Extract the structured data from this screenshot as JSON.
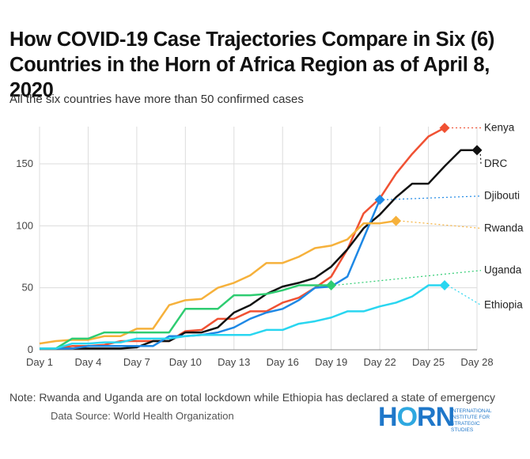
{
  "title": "How COVID-19 Case Trajectories Compare in Six (6) Countries in the Horn of Africa Region as of April 8, 2020",
  "subtitle": "All the six countries have more than 50 confirmed cases",
  "note": "Note: Rwanda and Uganda are on total lockdown while Ethiopia has declared a state of emergency",
  "source": "Data Source: World Health Organization",
  "logo": {
    "word": "HORN",
    "subtitle_lines": [
      "INTERNATIONAL",
      "INSTITUTE FOR",
      "STRATEGIC",
      "STUDIES"
    ]
  },
  "chart_data": {
    "type": "line",
    "title": "How COVID-19 Case Trajectories Compare in Six (6) Countries in the Horn of Africa Region as of April 8, 2020",
    "subtitle": "All the six countries have more than 50 confirmed cases",
    "xlabel": "",
    "ylabel": "",
    "x_ticks": [
      1,
      4,
      7,
      10,
      13,
      16,
      19,
      22,
      25,
      28
    ],
    "x_tick_labels": [
      "Day 1",
      "Day 4",
      "Day 7",
      "Day 10",
      "Day 13",
      "Day 16",
      "Day 19",
      "Day 22",
      "Day 25",
      "Day 28"
    ],
    "y_ticks": [
      0,
      50,
      100,
      150
    ],
    "xlim": [
      1,
      28
    ],
    "ylim": [
      0,
      180
    ],
    "grid": "vertical and horizontal",
    "legend": "direct labels at line ends (right)",
    "series": [
      {
        "name": "Kenya",
        "color": "#f05133",
        "x": [
          1,
          2,
          3,
          4,
          5,
          6,
          7,
          8,
          9,
          10,
          11,
          12,
          13,
          14,
          15,
          16,
          17,
          18,
          19,
          20,
          21,
          22,
          23,
          24,
          25,
          26
        ],
        "y": [
          1,
          1,
          3,
          3,
          4,
          7,
          7,
          7,
          7,
          15,
          16,
          25,
          25,
          31,
          31,
          38,
          42,
          50,
          59,
          81,
          110,
          122,
          142,
          158,
          172,
          179
        ]
      },
      {
        "name": "DRC",
        "color": "#111111",
        "x": [
          1,
          2,
          3,
          4,
          5,
          6,
          7,
          8,
          9,
          10,
          11,
          12,
          13,
          14,
          15,
          16,
          17,
          18,
          19,
          20,
          21,
          22,
          23,
          24,
          25,
          26,
          27,
          28
        ],
        "y": [
          1,
          1,
          1,
          1,
          1,
          1,
          2,
          7,
          7,
          14,
          14,
          18,
          30,
          36,
          45,
          51,
          54,
          58,
          67,
          81,
          98,
          109,
          123,
          134,
          134,
          148,
          161,
          161
        ]
      },
      {
        "name": "Djibouti",
        "color": "#1e88e5",
        "x": [
          1,
          2,
          3,
          4,
          5,
          6,
          7,
          8,
          9,
          10,
          11,
          12,
          13,
          14,
          15,
          16,
          17,
          18,
          19,
          20,
          21,
          22
        ],
        "y": [
          1,
          1,
          1,
          3,
          3,
          3,
          3,
          3,
          11,
          11,
          12,
          14,
          18,
          25,
          30,
          33,
          40,
          50,
          51,
          59,
          90,
          121
        ]
      },
      {
        "name": "Rwanda",
        "color": "#f6b13b",
        "x": [
          1,
          2,
          3,
          4,
          5,
          6,
          7,
          8,
          9,
          10,
          11,
          12,
          13,
          14,
          15,
          16,
          17,
          18,
          19,
          20,
          21,
          22,
          23
        ],
        "y": [
          5,
          7,
          8,
          8,
          11,
          11,
          17,
          17,
          36,
          40,
          41,
          50,
          54,
          60,
          70,
          70,
          75,
          82,
          84,
          89,
          102,
          102,
          104
        ]
      },
      {
        "name": "Uganda",
        "color": "#2ecc71",
        "x": [
          1,
          2,
          3,
          4,
          5,
          6,
          7,
          8,
          9,
          10,
          11,
          12,
          13,
          14,
          15,
          16,
          17,
          18,
          19
        ],
        "y": [
          1,
          1,
          9,
          9,
          14,
          14,
          14,
          14,
          14,
          33,
          33,
          33,
          44,
          44,
          45,
          48,
          52,
          52,
          52
        ]
      },
      {
        "name": "Ethiopia",
        "color": "#29d6f0",
        "x": [
          1,
          2,
          3,
          4,
          5,
          6,
          7,
          8,
          9,
          10,
          11,
          12,
          13,
          14,
          15,
          16,
          17,
          18,
          19,
          20,
          21,
          22,
          23,
          24,
          25,
          26
        ],
        "y": [
          1,
          1,
          5,
          5,
          6,
          6,
          9,
          9,
          9,
          11,
          12,
          12,
          12,
          12,
          16,
          16,
          21,
          23,
          26,
          31,
          31,
          35,
          38,
          43,
          52,
          52
        ]
      }
    ],
    "end_labels": [
      {
        "series": "Kenya",
        "label_y": 179
      },
      {
        "series": "DRC",
        "label_y": 150
      },
      {
        "series": "Djibouti",
        "label_y": 124
      },
      {
        "series": "Rwanda",
        "label_y": 98
      },
      {
        "series": "Uganda",
        "label_y": 64
      },
      {
        "series": "Ethiopia",
        "label_y": 36
      }
    ]
  }
}
